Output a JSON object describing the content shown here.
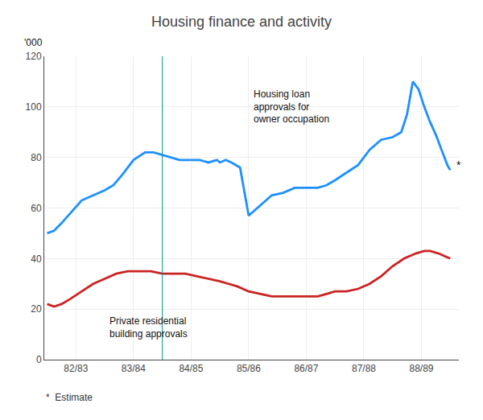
{
  "chart_data": {
    "type": "line",
    "title": "Housing finance and activity",
    "ylabel": "'000",
    "xlim": [
      -0.05,
      7.15
    ],
    "xticks": [
      {
        "value": 0.5,
        "label": "82/83"
      },
      {
        "value": 1.5,
        "label": "83/84"
      },
      {
        "value": 2.5,
        "label": "84/85"
      },
      {
        "value": 3.5,
        "label": "85/86"
      },
      {
        "value": 4.5,
        "label": "86/87"
      },
      {
        "value": 5.5,
        "label": "87/88"
      },
      {
        "value": 6.5,
        "label": "88/89"
      }
    ],
    "ylim": [
      0,
      120
    ],
    "yticks": [
      0,
      20,
      40,
      60,
      80,
      100,
      120
    ],
    "grid": true,
    "series": [
      {
        "color": "#1E90FF",
        "x": [
          0.0,
          0.12,
          0.25,
          0.4,
          0.6,
          0.8,
          1.0,
          1.15,
          1.3,
          1.5,
          1.7,
          1.85,
          2.0,
          2.15,
          2.3,
          2.5,
          2.65,
          2.8,
          2.95,
          3.0,
          3.1,
          3.2,
          3.35,
          3.5,
          3.7,
          3.9,
          4.1,
          4.3,
          4.5,
          4.7,
          4.85,
          5.0,
          5.2,
          5.4,
          5.6,
          5.8,
          6.0,
          6.15,
          6.25,
          6.35,
          6.45,
          6.55,
          6.65,
          6.75,
          6.85,
          6.95,
          7.0
        ],
        "values": [
          50,
          51,
          54,
          58,
          63,
          65,
          67,
          69,
          73,
          79,
          82,
          82,
          81,
          80,
          79,
          79,
          79,
          78,
          79,
          78,
          79,
          78,
          76,
          57,
          61,
          65,
          66,
          68,
          68,
          68,
          69,
          71,
          74,
          77,
          83,
          87,
          88,
          90,
          97,
          110,
          107,
          100,
          94,
          89,
          83,
          77,
          75
        ]
      },
      {
        "color": "#CC2222",
        "x": [
          0.0,
          0.12,
          0.25,
          0.4,
          0.6,
          0.8,
          1.0,
          1.2,
          1.4,
          1.6,
          1.8,
          2.0,
          2.2,
          2.4,
          2.6,
          2.8,
          3.0,
          3.15,
          3.3,
          3.5,
          3.7,
          3.9,
          4.1,
          4.3,
          4.5,
          4.7,
          4.85,
          5.0,
          5.2,
          5.4,
          5.6,
          5.8,
          6.0,
          6.2,
          6.4,
          6.55,
          6.65,
          6.8,
          6.9,
          7.0
        ],
        "values": [
          22,
          21,
          22,
          24,
          27,
          30,
          32,
          34,
          35,
          35,
          35,
          34,
          34,
          34,
          33,
          32,
          31,
          30,
          29,
          27,
          26,
          25,
          25,
          25,
          25,
          25,
          26,
          27,
          27,
          28,
          30,
          33,
          37,
          40,
          42,
          43,
          43,
          42,
          41,
          40
        ]
      }
    ],
    "vline": {
      "x": 2.0,
      "color": "#009B8D"
    },
    "annotations": [
      {
        "text": "Housing loan\napprovals for\nowner occupation",
        "x": 3.55,
        "y": 108
      },
      {
        "text": "Private residential\nbuilding approvals",
        "x": 1.05,
        "y": 18
      },
      {
        "text": "*",
        "x": 7.08,
        "y": 77
      }
    ],
    "footnote": "*  Estimate"
  }
}
